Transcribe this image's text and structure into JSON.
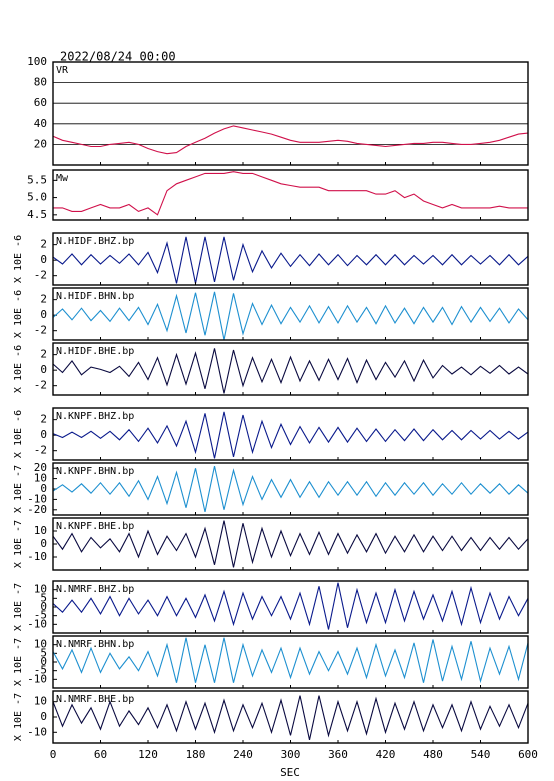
{
  "chart_data": {
    "type": "line",
    "title": "2022/08/24 00:00",
    "xlabel": "SEC",
    "xlim": [
      0,
      600
    ],
    "xticks": [
      0,
      60,
      120,
      180,
      240,
      300,
      360,
      420,
      480,
      540,
      600
    ],
    "x": [
      0,
      12,
      24,
      36,
      48,
      60,
      72,
      84,
      96,
      108,
      120,
      132,
      144,
      156,
      168,
      180,
      192,
      204,
      216,
      228,
      240,
      252,
      264,
      276,
      288,
      300,
      312,
      324,
      336,
      348,
      360,
      372,
      384,
      396,
      408,
      420,
      432,
      444,
      456,
      468,
      480,
      492,
      504,
      516,
      528,
      540,
      552,
      564,
      576,
      588,
      600
    ],
    "panels": [
      {
        "name": "VR",
        "ylim": [
          0,
          100
        ],
        "yticks": [
          20,
          40,
          60,
          80,
          100
        ],
        "grid": true,
        "series": [
          {
            "color": "#d0104a",
            "values": [
              28,
              24,
              22,
              20,
              18,
              18,
              20,
              21,
              22,
              20,
              16,
              13,
              11,
              12,
              18,
              22,
              26,
              31,
              35,
              38,
              36,
              34,
              32,
              30,
              27,
              24,
              22,
              22,
              22,
              23,
              24,
              23,
              21,
              20,
              19,
              18,
              19,
              20,
              21,
              21,
              22,
              22,
              21,
              20,
              20,
              21,
              22,
              24,
              27,
              30,
              31
            ]
          }
        ]
      },
      {
        "name": "Mw",
        "ylim": [
          4.35,
          5.8
        ],
        "yticks": [
          {
            "value": 4.5,
            "label": "4.5"
          },
          {
            "value": 5,
            "label": "5.0"
          },
          {
            "value": 5.5,
            "label": "5.5"
          }
        ],
        "grid": false,
        "series": [
          {
            "color": "#d0104a",
            "values": [
              4.7,
              4.7,
              4.6,
              4.6,
              4.7,
              4.8,
              4.7,
              4.7,
              4.8,
              4.6,
              4.7,
              4.5,
              5.2,
              5.4,
              5.5,
              5.6,
              5.7,
              5.7,
              5.7,
              5.75,
              5.7,
              5.7,
              5.6,
              5.5,
              5.4,
              5.35,
              5.3,
              5.3,
              5.3,
              5.2,
              5.2,
              5.2,
              5.2,
              5.2,
              5.1,
              5.1,
              5.2,
              5.0,
              5.1,
              4.9,
              4.8,
              4.7,
              4.8,
              4.7,
              4.7,
              4.7,
              4.7,
              4.75,
              4.7,
              4.7,
              4.7
            ]
          }
        ]
      },
      {
        "name": "N.HIDF.BHZ.bp",
        "ylabel": "X 10E -6",
        "ylim": [
          -3.2,
          3.5
        ],
        "yticks": [
          -2,
          0,
          2
        ],
        "grid": false,
        "series": [
          {
            "color": "#0a1a8c",
            "values": [
              0.4,
              -0.5,
              0.8,
              -0.6,
              0.7,
              -0.5,
              0.6,
              -0.4,
              0.8,
              -0.6,
              1,
              -1.6,
              2.2,
              -3,
              3,
              -3,
              3,
              -2.8,
              3,
              -2.6,
              2,
              -1.5,
              1.2,
              -1,
              0.9,
              -0.8,
              0.7,
              -0.7,
              0.8,
              -0.6,
              0.7,
              -0.7,
              0.6,
              -0.6,
              0.7,
              -0.6,
              0.7,
              -0.6,
              0.6,
              -0.5,
              0.6,
              -0.6,
              0.7,
              -0.6,
              0.6,
              -0.5,
              0.6,
              -0.6,
              0.7,
              -0.6,
              0.5
            ]
          }
        ]
      },
      {
        "name": "N.HIDF.BHN.bp",
        "ylabel": "X 10E -6",
        "ylim": [
          -3.2,
          3.5
        ],
        "yticks": [
          -2,
          0,
          2
        ],
        "grid": false,
        "series": [
          {
            "color": "#1e90d0",
            "values": [
              -0.3,
              0.8,
              -0.6,
              0.9,
              -0.7,
              0.6,
              -0.8,
              0.9,
              -0.7,
              1,
              -1.2,
              1.4,
              -2,
              2.5,
              -2.3,
              2.9,
              -2.6,
              3,
              -3.2,
              2.8,
              -2.4,
              1.5,
              -1.2,
              1.3,
              -1.1,
              1,
              -0.9,
              1.2,
              -1,
              1.1,
              -1,
              1.2,
              -0.9,
              1,
              -1.1,
              1.2,
              -1,
              0.9,
              -1.1,
              1,
              -0.9,
              1,
              -1.2,
              1.1,
              -0.9,
              1,
              -0.8,
              0.9,
              -1,
              0.8,
              -0.6
            ]
          }
        ]
      },
      {
        "name": "N.HIDF.BHE.bp",
        "ylabel": "X 10E -6",
        "ylim": [
          -3.2,
          3.5
        ],
        "yticks": [
          -2,
          0,
          2
        ],
        "grid": false,
        "series": [
          {
            "color": "#0a0a40",
            "values": [
              0.8,
              -0.3,
              1.2,
              -0.6,
              0.4,
              0.1,
              -0.3,
              0.5,
              -0.8,
              1,
              -1.2,
              1.6,
              -1.9,
              2,
              -1.8,
              2.2,
              -2.4,
              2.8,
              -3,
              2.6,
              -2,
              1.6,
              -1.5,
              1.4,
              -1.6,
              1.7,
              -1.4,
              1.2,
              -1.3,
              1.4,
              -1.2,
              1.5,
              -1.6,
              1.3,
              -1.2,
              1,
              -0.9,
              1.2,
              -1.4,
              1.3,
              -1,
              0.6,
              -0.5,
              0.4,
              -0.6,
              0.5,
              -0.4,
              0.6,
              -0.5,
              0.4,
              -0.5
            ]
          }
        ]
      },
      {
        "name": "N.KNPF.BHZ.bp",
        "ylabel": "X 10E -6",
        "ylim": [
          -3.2,
          3.5
        ],
        "yticks": [
          -2,
          0,
          2
        ],
        "grid": false,
        "series": [
          {
            "color": "#0a1a8c",
            "values": [
              0.2,
              -0.3,
              0.4,
              -0.3,
              0.5,
              -0.4,
              0.5,
              -0.6,
              0.7,
              -0.8,
              0.9,
              -1,
              1.2,
              -1.4,
              1.8,
              -2.2,
              2.8,
              -3,
              3,
              -2.8,
              2.6,
              -2.2,
              1.8,
              -1.6,
              1.4,
              -1.2,
              1.1,
              -1,
              1,
              -0.9,
              1,
              -0.9,
              0.9,
              -0.8,
              0.8,
              -0.8,
              0.7,
              -0.7,
              0.8,
              -0.7,
              0.7,
              -0.6,
              0.6,
              -0.6,
              0.6,
              -0.5,
              0.6,
              -0.5,
              0.5,
              -0.5,
              0.4
            ]
          }
        ]
      },
      {
        "name": "N.KNPF.BHN.bp",
        "ylabel": "X 10E -7",
        "ylim": [
          -25,
          25
        ],
        "yticks": [
          -20,
          -10,
          0,
          10,
          20
        ],
        "grid": false,
        "series": [
          {
            "color": "#1e90d0",
            "values": [
              -2,
              4,
              -3,
              5,
              -4,
              6,
              -5,
              6,
              -7,
              8,
              -10,
              12,
              -14,
              16,
              -18,
              20,
              -22,
              22,
              -20,
              18,
              -15,
              12,
              -10,
              9,
              -8,
              9,
              -8,
              7,
              -8,
              7,
              -6,
              7,
              -6,
              7,
              -7,
              6,
              -6,
              6,
              -5,
              6,
              -6,
              5,
              -5,
              6,
              -5,
              5,
              -4,
              5,
              -5,
              4,
              -4
            ]
          }
        ]
      },
      {
        "name": "N.KNPF.BHE.bp",
        "ylabel": "X 10E -7",
        "ylim": [
          -20,
          20
        ],
        "yticks": [
          -10,
          0,
          10
        ],
        "grid": false,
        "series": [
          {
            "color": "#0a0a40",
            "values": [
              6,
              -4,
              8,
              -6,
              5,
              -3,
              4,
              -6,
              8,
              -10,
              10,
              -8,
              6,
              -5,
              8,
              -10,
              12,
              -16,
              18,
              -18,
              16,
              -14,
              12,
              -10,
              10,
              -9,
              8,
              -8,
              9,
              -8,
              8,
              -7,
              7,
              -6,
              8,
              -7,
              6,
              -6,
              7,
              -6,
              6,
              -5,
              6,
              -5,
              5,
              -5,
              5,
              -4,
              5,
              -4,
              4
            ]
          }
        ]
      },
      {
        "name": "N.NMRF.BHZ.bp",
        "ylabel": "X 10E -7",
        "ylim": [
          -15,
          15
        ],
        "yticks": [
          -10,
          -5,
          0,
          5,
          10
        ],
        "grid": false,
        "series": [
          {
            "color": "#0a1a8c",
            "values": [
              2,
              -3,
              4,
              -3,
              5,
              -4,
              6,
              -5,
              5,
              -4,
              4,
              -5,
              6,
              -5,
              5,
              -6,
              7,
              -8,
              9,
              -10,
              8,
              -7,
              6,
              -5,
              6,
              -7,
              8,
              -10,
              12,
              -13,
              14,
              -12,
              10,
              -9,
              8,
              -9,
              10,
              -8,
              9,
              -7,
              7,
              -8,
              9,
              -10,
              11,
              -9,
              8,
              -7,
              6,
              -5,
              5
            ]
          }
        ]
      },
      {
        "name": "N.NMRF.BHN.bp",
        "ylabel": "X 10E -7",
        "ylim": [
          -15,
          15
        ],
        "yticks": [
          -10,
          -5,
          0,
          5,
          10
        ],
        "grid": false,
        "series": [
          {
            "color": "#1e90d0",
            "values": [
              6,
              -4,
              7,
              -6,
              8,
              -6,
              5,
              -4,
              3,
              -5,
              6,
              -8,
              10,
              -12,
              14,
              -12,
              10,
              -12,
              14,
              -12,
              10,
              -8,
              7,
              -6,
              8,
              -9,
              8,
              -7,
              6,
              -5,
              6,
              -7,
              8,
              -9,
              10,
              -8,
              7,
              -9,
              11,
              -12,
              13,
              -11,
              9,
              -10,
              12,
              -11,
              8,
              -7,
              9,
              -10,
              11
            ]
          }
        ]
      },
      {
        "name": "N.NMRF.BHE.bp",
        "ylabel": "X 10E -7",
        "ylim": [
          -17,
          17
        ],
        "yticks": [
          -10,
          0,
          10
        ],
        "grid": false,
        "series": [
          {
            "color": "#0a0a40",
            "values": [
              10,
              -6,
              8,
              -4,
              6,
              -8,
              10,
              -6,
              4,
              -5,
              6,
              -7,
              8,
              -9,
              10,
              -8,
              9,
              -10,
              11,
              -9,
              8,
              -7,
              9,
              -10,
              11,
              -12,
              14,
              -15,
              14,
              -12,
              10,
              -9,
              10,
              -11,
              12,
              -10,
              9,
              -8,
              10,
              -9,
              8,
              -7,
              8,
              -9,
              10,
              -8,
              7,
              -6,
              8,
              -7,
              9
            ]
          }
        ]
      }
    ]
  }
}
